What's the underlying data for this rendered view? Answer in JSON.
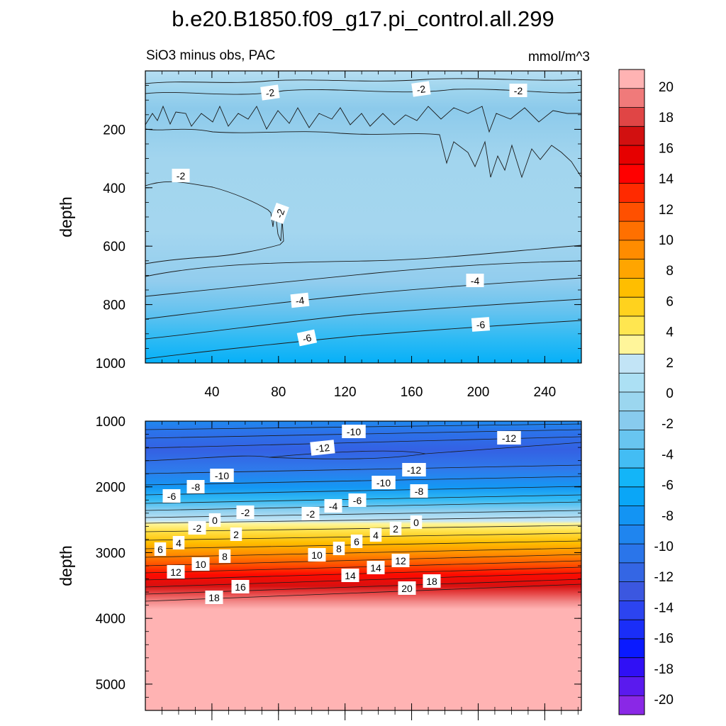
{
  "chart_data": {
    "type": "contour",
    "title": "b.e20.B1850.f09_g17.pi_control.all.299",
    "subtitle_left": "SiO3 minus obs, PAC",
    "subtitle_right": "mmol/m^3",
    "ylabel": "depth",
    "colorbar": {
      "levels": [
        -20,
        -18,
        -16,
        -14,
        -12,
        -10,
        -8,
        -6,
        -4,
        -2,
        0,
        2,
        4,
        6,
        8,
        10,
        12,
        14,
        16,
        18,
        20
      ],
      "tick_labels": [
        "20",
        "18",
        "16",
        "14",
        "12",
        "10",
        "8",
        "6",
        "4",
        "2",
        "0",
        "-2",
        "-4",
        "-6",
        "-8",
        "-10",
        "-12",
        "-14",
        "-16",
        "-18",
        "-20"
      ],
      "colors_top_to_bottom": [
        "#ffb3b3",
        "#f07a7a",
        "#e04545",
        "#d21010",
        "#e60000",
        "#ff0000",
        "#ff2a00",
        "#ff5000",
        "#ff7000",
        "#ff8c00",
        "#ffa500",
        "#ffbe00",
        "#ffd21e",
        "#ffe650",
        "#fff59a",
        "#c2e4f6",
        "#ace0f4",
        "#9bd6ef",
        "#88cbee",
        "#68c5f0",
        "#43bdf4",
        "#13b5f8",
        "#0aa6f7",
        "#1394f3",
        "#1f85ef",
        "#2a75ea",
        "#3466e4",
        "#3b57e0",
        "#2c44f0",
        "#1a2ef8",
        "#0a1aff",
        "#3010f5",
        "#5a1aee",
        "#8a28e6"
      ]
    },
    "top_panel": {
      "ylim": [
        0,
        1000
      ],
      "xlim": [
        0,
        262
      ],
      "y_ticks": [
        200,
        400,
        600,
        800,
        1000
      ],
      "x_ticks": [
        40,
        80,
        120,
        160,
        200,
        240
      ],
      "contour_labels": [
        "-2",
        "-2",
        "-2",
        "-2",
        "-2",
        "-4",
        "-4",
        "-6",
        "-6"
      ]
    },
    "bottom_panel": {
      "ylim": [
        1000,
        5400
      ],
      "xlim": [
        0,
        262
      ],
      "y_ticks": [
        1000,
        2000,
        3000,
        4000,
        5000
      ],
      "contour_labels": [
        "-10",
        "-12",
        "-12",
        "-10",
        "-12",
        "-8",
        "-10",
        "-8",
        "-6",
        "-6",
        "-2",
        "-2",
        "-4",
        "-2",
        "0",
        "0",
        "2",
        "2",
        "4",
        "4",
        "6",
        "6",
        "8",
        "8",
        "10",
        "10",
        "12",
        "12",
        "14",
        "14",
        "16",
        "18",
        "18",
        "20",
        "20"
      ]
    }
  }
}
